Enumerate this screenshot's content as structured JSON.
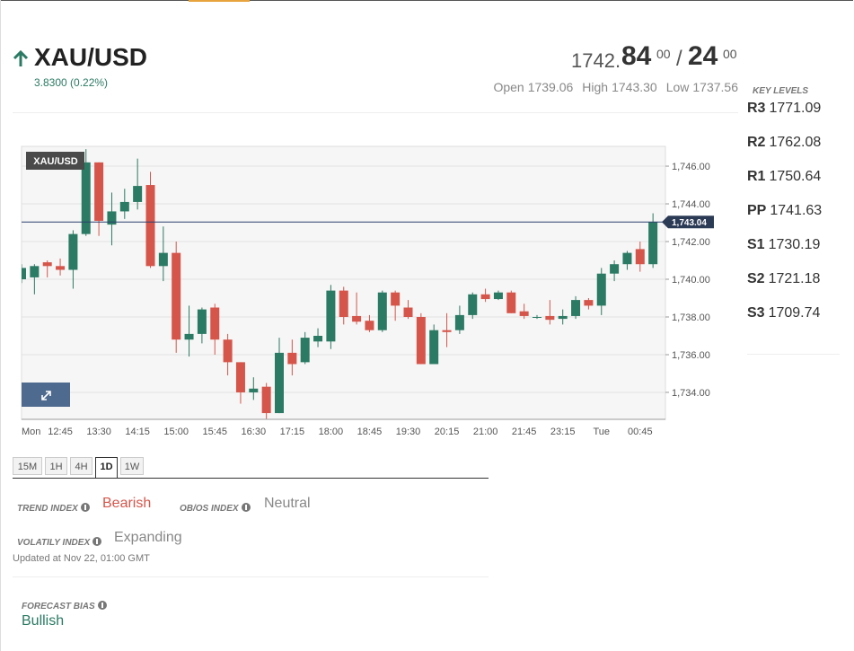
{
  "header": {
    "symbol": "XAU/USD",
    "change": "3.8300 (0.22%)",
    "bid_main": "1742.",
    "bid_big": "84",
    "bid_sup": "00",
    "separator": "/",
    "ask_big": "24",
    "ask_sup": "00",
    "stats": [
      {
        "label": "Open",
        "value": "1739.06"
      },
      {
        "label": "High",
        "value": "1743.30"
      },
      {
        "label": "Low",
        "value": "1737.56"
      }
    ]
  },
  "key_levels": {
    "title": "KEY LEVELS",
    "levels": [
      {
        "name": "R3",
        "value": "1771.09"
      },
      {
        "name": "R2",
        "value": "1762.08"
      },
      {
        "name": "R1",
        "value": "1750.64"
      },
      {
        "name": "PP",
        "value": "1741.63"
      },
      {
        "name": "S1",
        "value": "1730.19"
      },
      {
        "name": "S2",
        "value": "1721.18"
      },
      {
        "name": "S3",
        "value": "1709.74"
      }
    ]
  },
  "chart_data": {
    "type": "candlestick",
    "label": "XAU/USD",
    "categories": [
      "Mon",
      null,
      null,
      "12:45",
      null,
      null,
      "13:30",
      null,
      null,
      "14:15",
      null,
      null,
      "15:00",
      null,
      null,
      "15:45",
      null,
      null,
      "16:30",
      null,
      null,
      "17:15",
      null,
      null,
      "18:00",
      null,
      null,
      "18:45",
      null,
      null,
      "19:30",
      null,
      null,
      "20:15",
      null,
      null,
      "21:00",
      null,
      null,
      "21:45",
      null,
      null,
      "23:15",
      null,
      null,
      "Tue",
      null,
      null,
      "00:45",
      null
    ],
    "open": [
      1740.0,
      1740.1,
      1740.9,
      1740.7,
      1740.5,
      1742.4,
      1746.2,
      1742.9,
      1743.6,
      1744.1,
      1745.0,
      1740.7,
      1741.4,
      1736.8,
      1737.1,
      1738.5,
      1736.8,
      1735.6,
      1734.0,
      1734.3,
      1732.9,
      1736.1,
      1735.6,
      1736.7,
      1736.7,
      1739.4,
      1738.05,
      1737.8,
      1737.3,
      1739.3,
      1738.5,
      1738.0,
      1735.5,
      1737.3,
      1737.3,
      1738.1,
      1739.2,
      1738.95,
      1739.3,
      1738.3,
      1738.0,
      1738.05,
      1737.9,
      1738.05,
      1738.9,
      1738.6,
      1740.3,
      1740.8,
      1741.6,
      1740.8
    ],
    "high": [
      1740.8,
      1740.8,
      1741.0,
      1741.1,
      1742.6,
      1746.9,
      1746.2,
      1744.6,
      1744.8,
      1746.4,
      1745.7,
      1742.8,
      1742.0,
      1738.6,
      1738.5,
      1738.7,
      1737.1,
      1735.6,
      1734.8,
      1734.5,
      1736.9,
      1736.8,
      1737.2,
      1737.4,
      1739.7,
      1739.6,
      1739.3,
      1738.1,
      1739.4,
      1739.4,
      1738.9,
      1738.2,
      1737.6,
      1738.2,
      1738.6,
      1739.3,
      1739.5,
      1739.4,
      1739.4,
      1738.7,
      1738.1,
      1738.9,
      1738.4,
      1739.1,
      1739.0,
      1740.6,
      1741.0,
      1741.5,
      1742.0,
      1743.5
    ],
    "low": [
      1739.8,
      1739.2,
      1740.1,
      1740.2,
      1739.5,
      1742.3,
      1742.3,
      1741.8,
      1743.2,
      1743.7,
      1740.6,
      1739.9,
      1736.1,
      1735.9,
      1736.6,
      1736.0,
      1734.9,
      1733.4,
      1733.6,
      1732.6,
      1732.9,
      1734.9,
      1735.5,
      1736.4,
      1736.3,
      1737.6,
      1737.6,
      1737.2,
      1737.2,
      1737.8,
      1737.9,
      1735.5,
      1735.5,
      1736.4,
      1737.1,
      1737.9,
      1738.8,
      1738.9,
      1738.2,
      1737.9,
      1737.9,
      1737.6,
      1737.6,
      1737.9,
      1738.4,
      1738.1,
      1739.9,
      1740.5,
      1740.4,
      1740.6
    ],
    "close": [
      1740.6,
      1740.7,
      1740.7,
      1740.5,
      1742.4,
      1746.2,
      1743.1,
      1743.6,
      1744.1,
      1744.95,
      1740.7,
      1741.4,
      1736.8,
      1737.1,
      1738.4,
      1736.8,
      1735.6,
      1734.0,
      1734.2,
      1732.9,
      1736.1,
      1735.5,
      1736.9,
      1737.0,
      1739.4,
      1738.0,
      1737.75,
      1737.3,
      1739.3,
      1738.6,
      1738.0,
      1735.5,
      1737.3,
      1737.2,
      1738.1,
      1739.2,
      1738.95,
      1739.3,
      1738.2,
      1738.05,
      1738.0,
      1737.85,
      1738.05,
      1738.9,
      1738.6,
      1740.3,
      1740.8,
      1741.4,
      1740.8,
      1743.04
    ],
    "current_price": 1743.04,
    "current_price_label": "1,743.04",
    "ylim": [
      1732.57,
      1747.05
    ],
    "yticks": [
      {
        "value": 1734,
        "label": "1,734.00"
      },
      {
        "value": 1736,
        "label": "1,736.00"
      },
      {
        "value": 1738,
        "label": "1,738.00"
      },
      {
        "value": 1740,
        "label": "1,740.00"
      },
      {
        "value": 1742,
        "label": "1,742.00"
      },
      {
        "value": 1744,
        "label": "1,744.00"
      },
      {
        "value": 1746,
        "label": "1,746.00"
      }
    ],
    "grid": true,
    "up_color": "#2b7a63",
    "down_color": "#d5554a"
  },
  "timeframes": {
    "buttons": [
      "15M",
      "1H",
      "4H",
      "1D",
      "1W"
    ],
    "active": 3
  },
  "indices": {
    "trend_label": "TREND INDEX",
    "trend_value": "Bearish",
    "obos_label": "OB/OS INDEX",
    "obos_value": "Neutral",
    "volatility_label": "VOLATILY INDEX",
    "volatility_value": "Expanding",
    "updated": "Updated at Nov 22, 01:00 GMT"
  },
  "forecast": {
    "label": "FORECAST BIAS",
    "value": "Bullish"
  }
}
